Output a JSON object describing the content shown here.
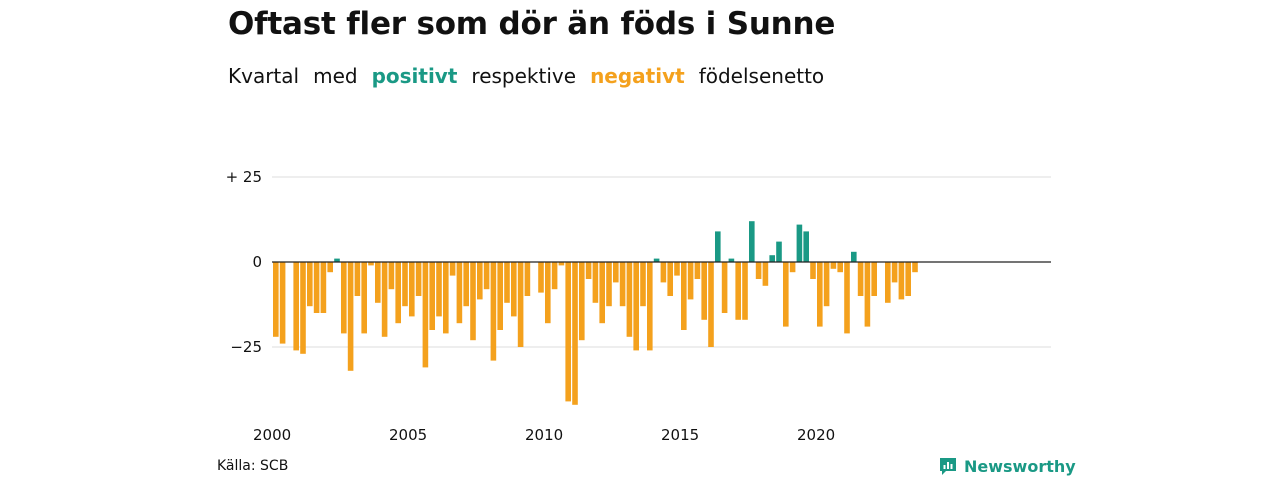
{
  "title": "Oftast fler som dör än föds i Sunne",
  "subtitle": {
    "part1": "Kvartal",
    "part2": "med",
    "positive_word": "positivt",
    "part3": "respektive",
    "negative_word": "negativt",
    "part4": "födelsenetto"
  },
  "source": "Källa: SCB",
  "brand": "Newsworthy",
  "colors": {
    "positive": "#1a9985",
    "negative": "#f4a11d",
    "grid": "#dddddd",
    "zero_line": "#222222",
    "brand": "#1a9985"
  },
  "chart_data": {
    "type": "bar",
    "x_start": "2000 Q1",
    "xticks": [
      2000,
      2005,
      2010,
      2015,
      2020
    ],
    "yticks": [
      {
        "value": 25,
        "label": "+ 25"
      },
      {
        "value": 0,
        "label": "0"
      },
      {
        "value": -25,
        "label": "−25"
      }
    ],
    "ylim": [
      -45,
      30
    ],
    "grid": true,
    "values": [
      -22,
      -24,
      0,
      -26,
      -27,
      -13,
      -15,
      -15,
      -3,
      1,
      -21,
      -32,
      -10,
      -21,
      -1,
      -12,
      -22,
      -8,
      -18,
      -13,
      -16,
      -10,
      -31,
      -20,
      -16,
      -21,
      -4,
      -18,
      -13,
      -23,
      -11,
      -8,
      -29,
      -20,
      -12,
      -16,
      -25,
      -10,
      0,
      -9,
      -18,
      -8,
      -1,
      -41,
      -42,
      -23,
      -5,
      -12,
      -18,
      -13,
      -6,
      -13,
      -22,
      -26,
      -13,
      -26,
      1,
      -6,
      -10,
      -4,
      -20,
      -11,
      -5,
      -17,
      -25,
      9,
      -15,
      1,
      -17,
      -17,
      12,
      -5,
      -7,
      2,
      6,
      -19,
      -3,
      11,
      9,
      -5,
      -19,
      -13,
      -2,
      -3,
      -21,
      3,
      -10,
      -19,
      -10,
      0,
      -12,
      -6,
      -11,
      -10,
      -3
    ]
  }
}
